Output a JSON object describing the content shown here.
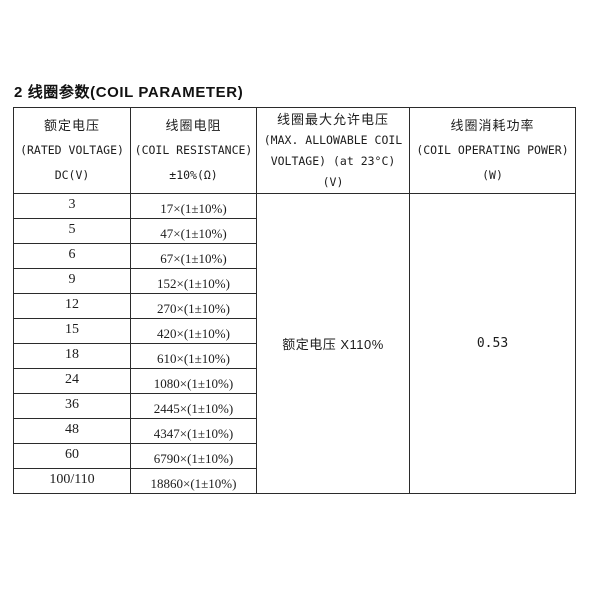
{
  "title": "2 线圈参数(COIL PARAMETER)",
  "table": {
    "columns": [
      {
        "lines": [
          "额定电压",
          "(RATED VOLTAGE)",
          "DC(V)"
        ]
      },
      {
        "lines": [
          "线圈电阻",
          "(COIL RESISTANCE)",
          "±10%(Ω)"
        ]
      },
      {
        "lines": [
          "线圈最大允许电压",
          "(MAX. ALLOWABLE COIL",
          "VOLTAGE) (at 23°C)",
          "(V)"
        ]
      },
      {
        "lines": [
          "线圈消耗功率",
          "(COIL OPERATING POWER)",
          "(W)"
        ]
      }
    ],
    "rows": [
      {
        "voltage": "3",
        "resistance": "17×(1±10%)"
      },
      {
        "voltage": "5",
        "resistance": "47×(1±10%)"
      },
      {
        "voltage": "6",
        "resistance": "67×(1±10%)"
      },
      {
        "voltage": "9",
        "resistance": "152×(1±10%)"
      },
      {
        "voltage": "12",
        "resistance": "270×(1±10%)"
      },
      {
        "voltage": "15",
        "resistance": "420×(1±10%)"
      },
      {
        "voltage": "18",
        "resistance": "610×(1±10%)"
      },
      {
        "voltage": "24",
        "resistance": "1080×(1±10%)"
      },
      {
        "voltage": "36",
        "resistance": "2445×(1±10%)"
      },
      {
        "voltage": "48",
        "resistance": "4347×(1±10%)"
      },
      {
        "voltage": "60",
        "resistance": "6790×(1±10%)"
      },
      {
        "voltage": "100/110",
        "resistance": "18860×(1±10%)"
      }
    ],
    "max_allowable_voltage": "额定电压 X110%",
    "operating_power": "0.53",
    "border_color": "#2b2b2b",
    "text_color": "#1c1c1c"
  }
}
